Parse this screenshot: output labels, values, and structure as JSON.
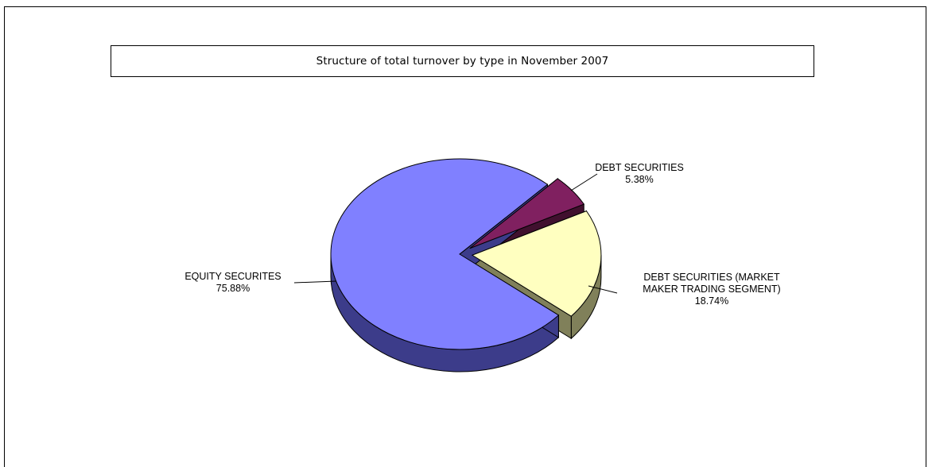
{
  "chart_data": {
    "type": "pie",
    "title": "Structure of total turnover by type in November 2007",
    "three_d": true,
    "slices": [
      {
        "label": "EQUITY SECURITES",
        "value": 75.88,
        "value_label": "75.88%",
        "color": "#8080ff",
        "side_color": "#3c3c8a",
        "exploded": false
      },
      {
        "label": "DEBT SECURITIES",
        "value": 5.38,
        "value_label": "5.38%",
        "color": "#802060",
        "side_color": "#40102e",
        "exploded": true
      },
      {
        "label": "DEBT SECURITIES (MARKET MAKER TRADING SEGMENT)",
        "label_lines": [
          "DEBT SECURITIES (MARKET",
          "MAKER TRADING SEGMENT)"
        ],
        "value": 18.74,
        "value_label": "18.74%",
        "color": "#ffffc0",
        "side_color": "#80805a",
        "exploded": true
      }
    ]
  }
}
